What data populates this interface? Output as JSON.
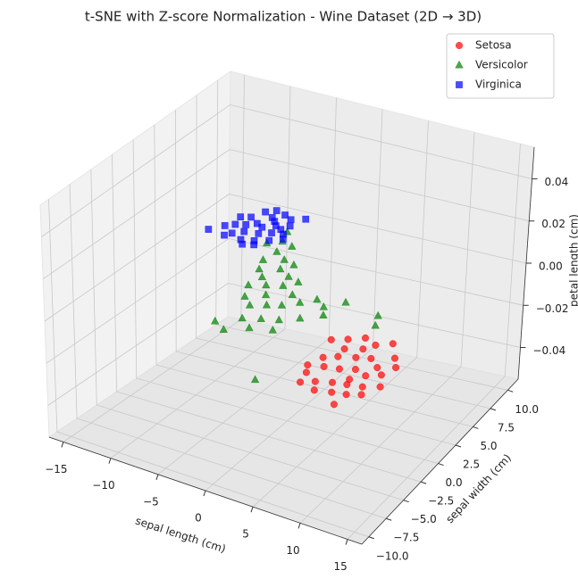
{
  "chart_data": {
    "type": "scatter3d",
    "title": "t-SNE with Z-score Normalization - Wine Dataset (2D → 3D)",
    "xlabel": "sepal length (cm)",
    "ylabel": "sepal width (cm)",
    "zlabel": "petal length (cm)",
    "xlim": [
      -16.5,
      16.5
    ],
    "ylim": [
      -11,
      11.5
    ],
    "zlim": [
      -0.055,
      0.055
    ],
    "xticks": [
      {
        "value": -15,
        "label": "−15"
      },
      {
        "value": -10,
        "label": "−10"
      },
      {
        "value": -5,
        "label": "−5"
      },
      0,
      5,
      10,
      15
    ],
    "yticks": [
      {
        "value": -10,
        "label": "−10.0"
      },
      {
        "value": -7.5,
        "label": "−7.5"
      },
      {
        "value": -5,
        "label": "−5.0"
      },
      {
        "value": -2.5,
        "label": "−2.5"
      },
      {
        "value": 0,
        "label": "0.0"
      },
      2.5,
      {
        "value": 5,
        "label": "5.0"
      },
      7.5,
      {
        "value": 10,
        "label": "10.0"
      }
    ],
    "zticks": [
      {
        "value": -0.04,
        "label": "−0.04"
      },
      {
        "value": -0.02,
        "label": "−0.02"
      },
      {
        "value": 0,
        "label": "0.00"
      },
      0.02,
      0.04
    ],
    "grid": true,
    "legend": "upper right",
    "alpha": 0.7,
    "series": [
      {
        "name": "Setosa",
        "color": "red",
        "marker": "circle",
        "x": [
          6.2,
          7.5,
          8.8,
          10.2,
          11.5,
          12.8,
          13.6,
          12.1,
          10.9,
          9.6,
          8.1,
          7.0,
          6.4,
          7.8,
          9.2,
          10.5,
          11.8,
          13.0,
          12.4,
          11.0,
          9.7,
          8.3,
          7.2,
          8.9,
          10.4,
          11.7,
          12.9,
          13.8,
          9.5,
          8.0,
          10.8,
          6.9,
          11.5
        ],
        "y": [
          -2.1,
          -1.5,
          -0.8,
          -1.2,
          -0.5,
          -1.9,
          -2.8,
          -3.4,
          -2.7,
          -3.1,
          -3.6,
          -4.2,
          -5.5,
          -5.1,
          -4.8,
          -4.3,
          -4.6,
          -4.0,
          -5.8,
          -6.1,
          -6.4,
          -6.9,
          -7.5,
          -7.8,
          -7.4,
          -7.1,
          -6.6,
          -5.2,
          -2.0,
          -2.6,
          -5.5,
          -6.3,
          -8.5
        ],
        "z": [
          0,
          0,
          0,
          0,
          0,
          0,
          0,
          0,
          0,
          0,
          0,
          0,
          0,
          0,
          0,
          0,
          0,
          0,
          0,
          0,
          0,
          0,
          0,
          0,
          0,
          0,
          0,
          0,
          0,
          0,
          0,
          0,
          0
        ]
      },
      {
        "name": "Versicolor",
        "color": "green",
        "marker": "triangle",
        "x": [
          -7.4,
          -6.8,
          -7.9,
          -6.2,
          -5.5,
          -4.8,
          -6.5,
          -5.9,
          -4.2,
          -3.5,
          -2.8,
          -4.9,
          -3.8,
          -2.4,
          -1.5,
          -0.8,
          -2.9,
          -4.4,
          -3.2,
          -1.9,
          -0.7,
          0.5,
          1.6,
          2.8,
          4.2,
          3.5,
          1.9,
          0.4,
          -1.1,
          -2.6,
          -4.4,
          -3.0,
          -1.2,
          0.8,
          8.0,
          8.6,
          3.6,
          -5.2
        ],
        "y": [
          8.5,
          7.2,
          6.5,
          5.8,
          6.9,
          5.1,
          4.4,
          3.2,
          3.9,
          4.8,
          3.3,
          2.4,
          1.6,
          2.1,
          3.0,
          1.4,
          0.5,
          -0.4,
          -1.2,
          -0.6,
          -0.1,
          0.8,
          1.7,
          1.1,
          2.3,
          0.2,
          -0.9,
          -1.8,
          -2.3,
          -2.9,
          -4.2,
          -4.8,
          -3.7,
          -3.1,
          1.9,
          0.8,
          -8.9,
          1.0
        ],
        "z": [
          0,
          0,
          0,
          0,
          0,
          0,
          0,
          0,
          0,
          0,
          0,
          0,
          0,
          0,
          0,
          0,
          0,
          0,
          0,
          0,
          0,
          0,
          0,
          0,
          0,
          0,
          0,
          0,
          0,
          0,
          0,
          0,
          0,
          0,
          0,
          0,
          0,
          0
        ]
      },
      {
        "name": "Virginica",
        "color": "blue",
        "marker": "square",
        "x": [
          -14.1,
          -12.5,
          -12.0,
          -11.4,
          -10.8,
          -10.2,
          -9.6,
          -9.0,
          -8.4,
          -7.8,
          -7.2,
          -11.8,
          -11.0,
          -10.4,
          -9.8,
          -9.2,
          -8.6,
          -8.0,
          -7.5,
          -12.9,
          -13.2,
          -10.6,
          -9.4,
          -8.8,
          -11.6,
          -10.0,
          -8.2,
          -12.2,
          -7.0,
          -9.6
        ],
        "y": [
          6.3,
          7.8,
          9.2,
          10.3,
          8.6,
          9.8,
          7.4,
          8.9,
          10.1,
          9.3,
          10.6,
          6.6,
          7.2,
          6.1,
          5.6,
          6.4,
          7.9,
          6.9,
          8.1,
          8.9,
          7.3,
          10.8,
          10.5,
          5.9,
          8.1,
          8.3,
          8.6,
          6.1,
          7.5,
          9.4
        ],
        "z": [
          0,
          0,
          0,
          0,
          0,
          0,
          0,
          0,
          0,
          0,
          0,
          0,
          0,
          0,
          0,
          0,
          0,
          0,
          0,
          0,
          0,
          0,
          0,
          0,
          0,
          0,
          0,
          0,
          0,
          0
        ]
      }
    ]
  }
}
